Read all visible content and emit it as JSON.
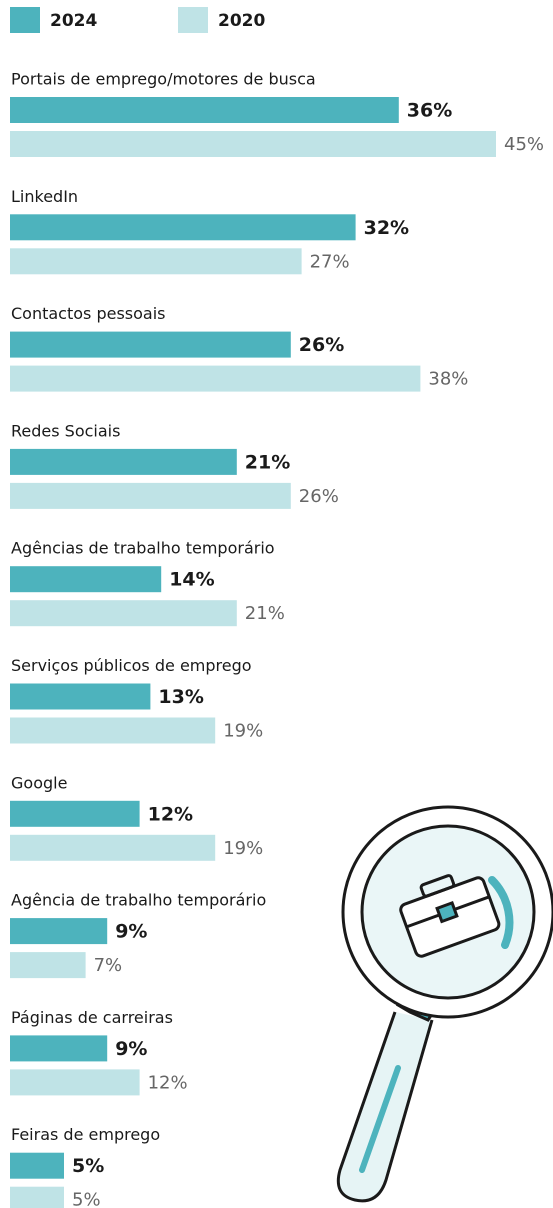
{
  "chart_data": {
    "type": "bar",
    "orientation": "horizontal",
    "categories": [
      "Portais de emprego/motores de busca",
      "LinkedIn",
      "Contactos pessoais",
      "Redes Sociais",
      "Agências de trabalho temporário",
      "Serviços públicos de emprego",
      "Google",
      "Agência de trabalho temporário",
      "Páginas de carreiras",
      "Feiras de emprego"
    ],
    "series": [
      {
        "name": "2024",
        "color": "#4db3bd",
        "values": [
          36,
          32,
          26,
          21,
          14,
          13,
          12,
          9,
          9,
          5
        ],
        "value_labels": [
          "36%",
          "32%",
          "26%",
          "21%",
          "14%",
          "13%",
          "12%",
          "9%",
          "9%",
          "5%"
        ]
      },
      {
        "name": "2020",
        "color": "#bfe3e6",
        "values": [
          45,
          27,
          38,
          26,
          21,
          19,
          19,
          7,
          12,
          5
        ],
        "value_labels": [
          "45%",
          "27%",
          "38%",
          "26%",
          "21%",
          "19%",
          "19%",
          "7%",
          "12%",
          "5%"
        ]
      }
    ],
    "legend": "top-left"
  }
}
